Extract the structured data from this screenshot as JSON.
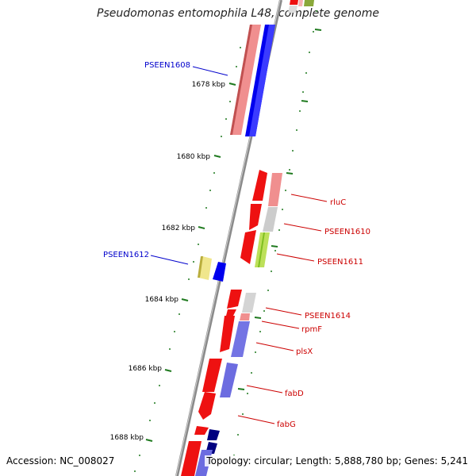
{
  "title": "Pseudomonas entomophila L48, complete genome",
  "footer": {
    "accession": "Accession: NC_008027",
    "topology": "Topology: circular; Length: 5,888,780 bp; Genes: 5,241"
  },
  "colors": {
    "backbone": "#8a8a8a",
    "tick": "#1f7a1f",
    "plus_label": "#cc0000",
    "minus_label": "#0000cc"
  },
  "ticks": [
    {
      "label": "1678 kbp",
      "kbp": 1678
    },
    {
      "label": "1680 kbp",
      "kbp": 1680
    },
    {
      "label": "1682 kbp",
      "kbp": 1682
    },
    {
      "label": "1684 kbp",
      "kbp": 1684
    },
    {
      "label": "1686 kbp",
      "kbp": 1686
    },
    {
      "label": "1688 kbp",
      "kbp": 1688
    }
  ],
  "gene_labels": [
    {
      "text": "PSEEN1608",
      "strand": "minus"
    },
    {
      "text": "PSEEN1612",
      "strand": "minus"
    },
    {
      "text": "rluC",
      "strand": "plus"
    },
    {
      "text": "PSEEN1610",
      "strand": "plus"
    },
    {
      "text": "PSEEN1611",
      "strand": "plus"
    },
    {
      "text": "PSEEN1614",
      "strand": "plus"
    },
    {
      "text": "rpmF",
      "strand": "plus"
    },
    {
      "text": "plsX",
      "strand": "plus"
    },
    {
      "text": "fabD",
      "strand": "plus"
    },
    {
      "text": "fabG",
      "strand": "plus"
    }
  ]
}
